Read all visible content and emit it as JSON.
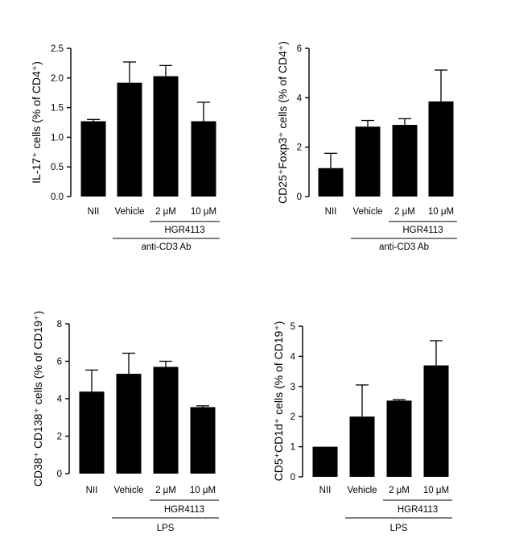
{
  "chart_data": [
    {
      "type": "bar",
      "categories": [
        "NII",
        "Vehicle",
        "2 μM",
        "10 μM"
      ],
      "values": [
        1.27,
        1.92,
        2.03,
        1.27
      ],
      "errors": [
        0.03,
        0.35,
        0.18,
        0.32
      ],
      "ylabel": "IL-17⁺ cells (% of CD4⁺)",
      "ylim": [
        0,
        2.5
      ],
      "yticks": [
        "0.0",
        "0.5",
        "1.0",
        "1.5",
        "2.0",
        "2.5"
      ],
      "group_labels": {
        "inner": "HGR4113",
        "outer": "anti-CD3 Ab"
      },
      "bar_color": "#000000"
    },
    {
      "type": "bar",
      "categories": [
        "NII",
        "Vehicle",
        "2 μM",
        "10 μM"
      ],
      "values": [
        1.15,
        2.83,
        2.9,
        3.85
      ],
      "errors": [
        0.6,
        0.25,
        0.25,
        1.27
      ],
      "ylabel": "CD25⁺Foxp3⁺ cells (% of CD4⁺)",
      "ylim": [
        0,
        6
      ],
      "yticks": [
        "0",
        "2",
        "4",
        "6"
      ],
      "group_labels": {
        "inner": "HGR4113",
        "outer": "anti-CD3 Ab"
      },
      "bar_color": "#000000"
    },
    {
      "type": "bar",
      "categories": [
        "NII",
        "Vehicle",
        "2 μM",
        "10 μM"
      ],
      "values": [
        4.38,
        5.33,
        5.7,
        3.55
      ],
      "errors": [
        1.15,
        1.1,
        0.3,
        0.07
      ],
      "ylabel": "CD38⁺ CD138⁺ cells (% of CD19⁺)",
      "ylim": [
        0,
        8
      ],
      "yticks": [
        "0",
        "2",
        "4",
        "6",
        "8"
      ],
      "group_labels": {
        "inner": "HGR4113",
        "outer": "LPS"
      },
      "bar_color": "#000000"
    },
    {
      "type": "bar",
      "categories": [
        "NII",
        "Vehicle",
        "2 μM",
        "10 μM"
      ],
      "values": [
        1.0,
        2.0,
        2.53,
        3.7
      ],
      "errors": [
        0.0,
        1.05,
        0.03,
        0.82
      ],
      "ylabel": "CD5⁺CD1d⁺ cells (% of CD19⁺)",
      "ylim": [
        0,
        5
      ],
      "yticks": [
        "0",
        "1",
        "2",
        "3",
        "4",
        "5"
      ],
      "group_labels": {
        "inner": "HGR4113",
        "outer": "LPS"
      },
      "bar_color": "#000000"
    }
  ]
}
